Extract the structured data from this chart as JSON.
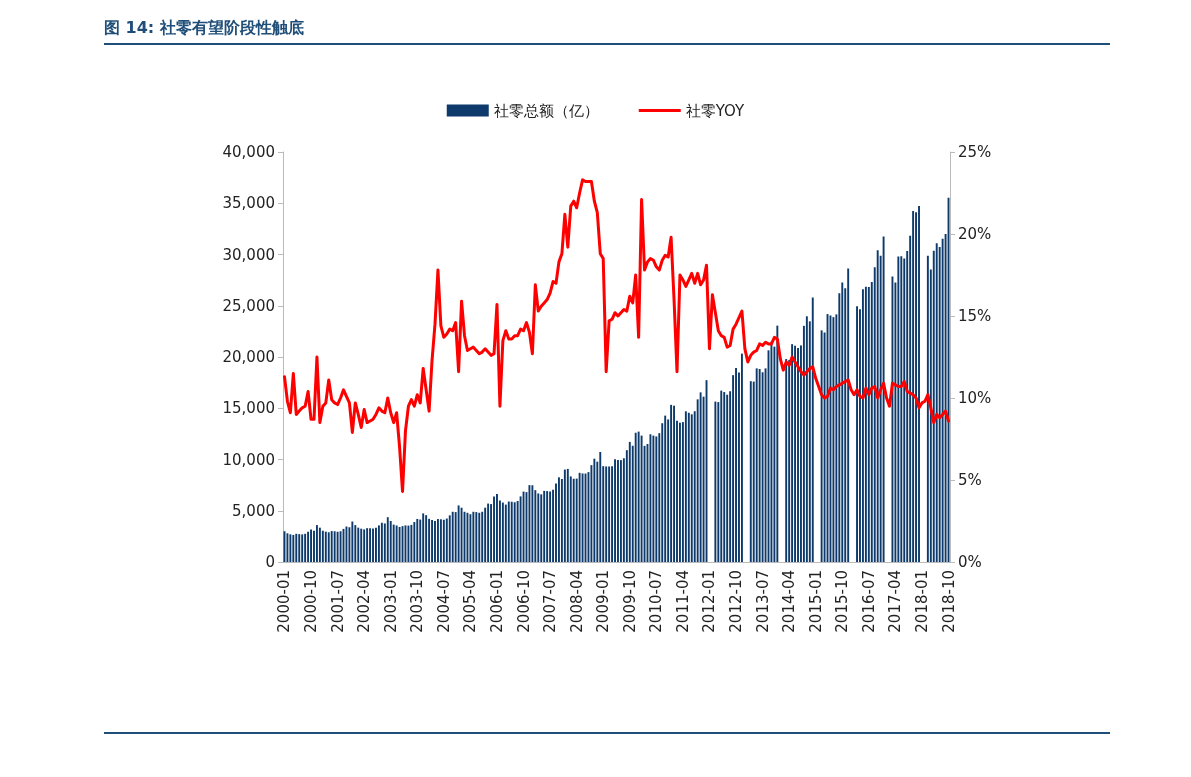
{
  "chart_data": {
    "type": "bar",
    "title": "图 14: 社零有望阶段性触底",
    "categories": [
      "2000-01",
      null,
      null,
      null,
      null,
      null,
      null,
      null,
      null,
      "2000-10",
      null,
      null,
      null,
      null,
      null,
      null,
      null,
      null,
      "2001-07",
      null,
      null,
      null,
      null,
      null,
      null,
      null,
      null,
      "2002-04",
      null,
      null,
      null,
      null,
      null,
      null,
      null,
      null,
      "2003-01",
      null,
      null,
      null,
      null,
      null,
      null,
      null,
      null,
      "2003-10",
      null,
      null,
      null,
      null,
      null,
      null,
      null,
      null,
      "2004-07",
      null,
      null,
      null,
      null,
      null,
      null,
      null,
      null,
      "2005-04",
      null,
      null,
      null,
      null,
      null,
      null,
      null,
      null,
      "2006-01",
      null,
      null,
      null,
      null,
      null,
      null,
      null,
      null,
      "2006-10",
      null,
      null,
      null,
      null,
      null,
      null,
      null,
      null,
      "2007-07",
      null,
      null,
      null,
      null,
      null,
      null,
      null,
      null,
      "2008-04",
      null,
      null,
      null,
      null,
      null,
      null,
      null,
      null,
      "2009-01",
      null,
      null,
      null,
      null,
      null,
      null,
      null,
      null,
      "2009-10",
      null,
      null,
      null,
      null,
      null,
      null,
      null,
      null,
      "2010-07",
      null,
      null,
      null,
      null,
      null,
      null,
      null,
      null,
      "2011-04",
      null,
      null,
      null,
      null,
      null,
      null,
      null,
      null,
      "2012-01",
      null,
      null,
      null,
      null,
      null,
      null,
      null,
      null,
      "2012-10",
      null,
      null,
      null,
      null,
      null,
      null,
      null,
      null,
      "2013-07",
      null,
      null,
      null,
      null,
      null,
      null,
      null,
      null,
      "2014-04",
      null,
      null,
      null,
      null,
      null,
      null,
      null,
      null,
      "2015-01",
      null,
      null,
      null,
      null,
      null,
      null,
      null,
      null,
      "2015-10",
      null,
      null,
      null,
      null,
      null,
      null,
      null,
      null,
      "2016-07",
      null,
      null,
      null,
      null,
      null,
      null,
      null,
      null,
      "2017-04",
      null,
      null,
      null,
      null,
      null,
      null,
      null,
      null,
      "2018-01",
      null,
      null,
      null,
      null,
      null,
      null,
      null,
      null,
      "2018-10"
    ],
    "series": [
      {
        "name": "社零总额（亿）",
        "color": "#0d3a6b",
        "values": [
          3000,
          2800,
          2700,
          2640,
          2750,
          2720,
          2690,
          2750,
          2950,
          3160,
          3060,
          3600,
          3350,
          3050,
          2960,
          2900,
          3020,
          3000,
          2950,
          3000,
          3230,
          3460,
          3390,
          3950,
          3600,
          3350,
          3250,
          3180,
          3300,
          3290,
          3260,
          3330,
          3570,
          3830,
          3760,
          4370,
          4000,
          3650,
          3560,
          3420,
          3500,
          3570,
          3550,
          3620,
          3900,
          4200,
          4140,
          4740,
          4570,
          4210,
          4100,
          3990,
          4190,
          4170,
          4120,
          4240,
          4550,
          4900,
          4870,
          5520,
          5300,
          4900,
          4800,
          4660,
          4900,
          4870,
          4800,
          4900,
          5300,
          5700,
          5650,
          6400,
          6640,
          6000,
          5800,
          5600,
          5900,
          5870,
          5830,
          5950,
          6400,
          6870,
          6820,
          7500,
          7490,
          7010,
          6690,
          6600,
          6940,
          6920,
          6880,
          7050,
          7660,
          8260,
          8100,
          9020,
          9080,
          8350,
          8120,
          8140,
          8700,
          8640,
          8630,
          8770,
          9450,
          10080,
          9790,
          10730,
          9350,
          9320,
          9320,
          9340,
          10030,
          9940,
          9940,
          10120,
          10910,
          11720,
          11340,
          12610,
          12720,
          12330,
          11330,
          11510,
          12460,
          12330,
          12250,
          12570,
          13540,
          14280,
          13910,
          15330,
          15250,
          13770,
          13590,
          13650,
          14700,
          14560,
          14410,
          14710,
          15870,
          16550,
          16130,
          17740,
          null,
          null,
          15650,
          15600,
          16720,
          16580,
          16320,
          16660,
          18230,
          18930,
          18480,
          20330,
          null,
          null,
          17640,
          17600,
          18890,
          18830,
          18510,
          18890,
          20650,
          21490,
          21010,
          23060,
          null,
          null,
          19800,
          19700,
          21250,
          21100,
          20890,
          21130,
          23040,
          23970,
          23480,
          25800,
          null,
          null,
          22600,
          22390,
          24190,
          24050,
          23890,
          24160,
          26230,
          27280,
          26700,
          28640,
          null,
          null,
          24950,
          24650,
          26610,
          26860,
          26830,
          27310,
          28760,
          30420,
          29880,
          31760,
          null,
          null,
          27860,
          27280,
          29810,
          29820,
          29610,
          30330,
          31840,
          34240,
          34110,
          34730,
          null,
          null,
          29890,
          28540,
          30360,
          31100,
          30730,
          31540,
          32010,
          35530
        ]
      },
      {
        "name": "社零YOY",
        "type": "line",
        "axis": "y2",
        "color": "#ff0000",
        "values": [
          11.3,
          9.8,
          9.1,
          11.5,
          9.0,
          9.2,
          9.4,
          9.5,
          10.4,
          8.7,
          8.7,
          12.5,
          8.5,
          9.5,
          9.7,
          11.1,
          9.9,
          9.7,
          9.6,
          10.0,
          10.5,
          10.1,
          9.7,
          7.9,
          9.7,
          9.0,
          8.2,
          9.3,
          8.5,
          8.6,
          8.7,
          9.0,
          9.4,
          9.2,
          9.1,
          10.0,
          9.1,
          8.5,
          9.1,
          7.0,
          4.3,
          8.0,
          9.5,
          9.9,
          9.5,
          10.2,
          9.7,
          11.8,
          10.5,
          9.2,
          12.3,
          14.5,
          17.8,
          14.4,
          13.7,
          13.9,
          14.2,
          14.1,
          14.6,
          11.6,
          15.9,
          13.8,
          12.9,
          13.0,
          13.1,
          12.9,
          12.7,
          12.8,
          13.0,
          12.8,
          12.6,
          12.7,
          15.7,
          9.5,
          13.5,
          14.1,
          13.6,
          13.6,
          13.8,
          13.8,
          14.2,
          14.1,
          14.6,
          14.0,
          12.7,
          16.9,
          15.3,
          15.6,
          15.8,
          16.0,
          16.4,
          17.1,
          17.0,
          18.3,
          18.8,
          21.2,
          19.2,
          21.7,
          22.0,
          21.6,
          22.5,
          23.3,
          23.2,
          23.2,
          23.2,
          22.0,
          21.3,
          18.8,
          18.5,
          11.6,
          14.7,
          14.8,
          15.2,
          15.0,
          15.2,
          15.4,
          15.3,
          16.2,
          15.8,
          17.5,
          13.7,
          22.1,
          17.8,
          18.3,
          18.5,
          18.4,
          18.0,
          17.8,
          18.4,
          18.7,
          18.6,
          19.8,
          16.0,
          11.6,
          17.5,
          17.2,
          16.8,
          17.2,
          17.6,
          17.0,
          17.6,
          16.9,
          17.2,
          18.1,
          13.0,
          16.3,
          15.2,
          14.1,
          13.8,
          13.7,
          13.1,
          13.2,
          14.2,
          14.5,
          14.9,
          15.3,
          13.0,
          12.2,
          12.6,
          12.8,
          12.9,
          13.3,
          13.2,
          13.4,
          13.3,
          13.3,
          13.7,
          13.6,
          12.4,
          11.7,
          12.2,
          12.0,
          12.5,
          12.2,
          11.9,
          11.6,
          11.4,
          11.6,
          11.8,
          11.9,
          11.2,
          10.7,
          10.2,
          10.0,
          10.1,
          10.6,
          10.5,
          10.7,
          10.8,
          10.9,
          11.0,
          11.1,
          10.5,
          10.2,
          10.5,
          10.1,
          10.0,
          10.6,
          10.2,
          10.6,
          10.7,
          10.0,
          10.5,
          10.9,
          10.0,
          9.5,
          10.9,
          10.8,
          10.7,
          10.7,
          11.0,
          10.4,
          10.3,
          10.2,
          10.0,
          9.4,
          9.7,
          9.8,
          10.2,
          9.4,
          8.5,
          9.0,
          8.8,
          9.0,
          9.2,
          8.6
        ]
      }
    ],
    "ylim": [
      0,
      40000
    ],
    "yticks": [
      0,
      {
        "value": 5000,
        "label": "5,000"
      },
      {
        "value": 10000,
        "label": "10,000"
      },
      {
        "value": 15000,
        "label": "15,000"
      },
      {
        "value": 20000,
        "label": "20,000"
      },
      {
        "value": 25000,
        "label": "25,000"
      },
      {
        "value": 30000,
        "label": "30,000"
      },
      {
        "value": 35000,
        "label": "35,000"
      },
      {
        "value": 40000,
        "label": "40,000"
      }
    ],
    "y2lim": [
      0,
      25
    ],
    "y2ticks": [
      {
        "value": 0,
        "label": "0%"
      },
      {
        "value": 5,
        "label": "5%"
      },
      {
        "value": 10,
        "label": "10%"
      },
      {
        "value": 15,
        "label": "15%"
      },
      {
        "value": 20,
        "label": "20%"
      },
      {
        "value": 25,
        "label": "25%"
      }
    ],
    "legend": "top",
    "grid": false,
    "line_style": "solid"
  }
}
